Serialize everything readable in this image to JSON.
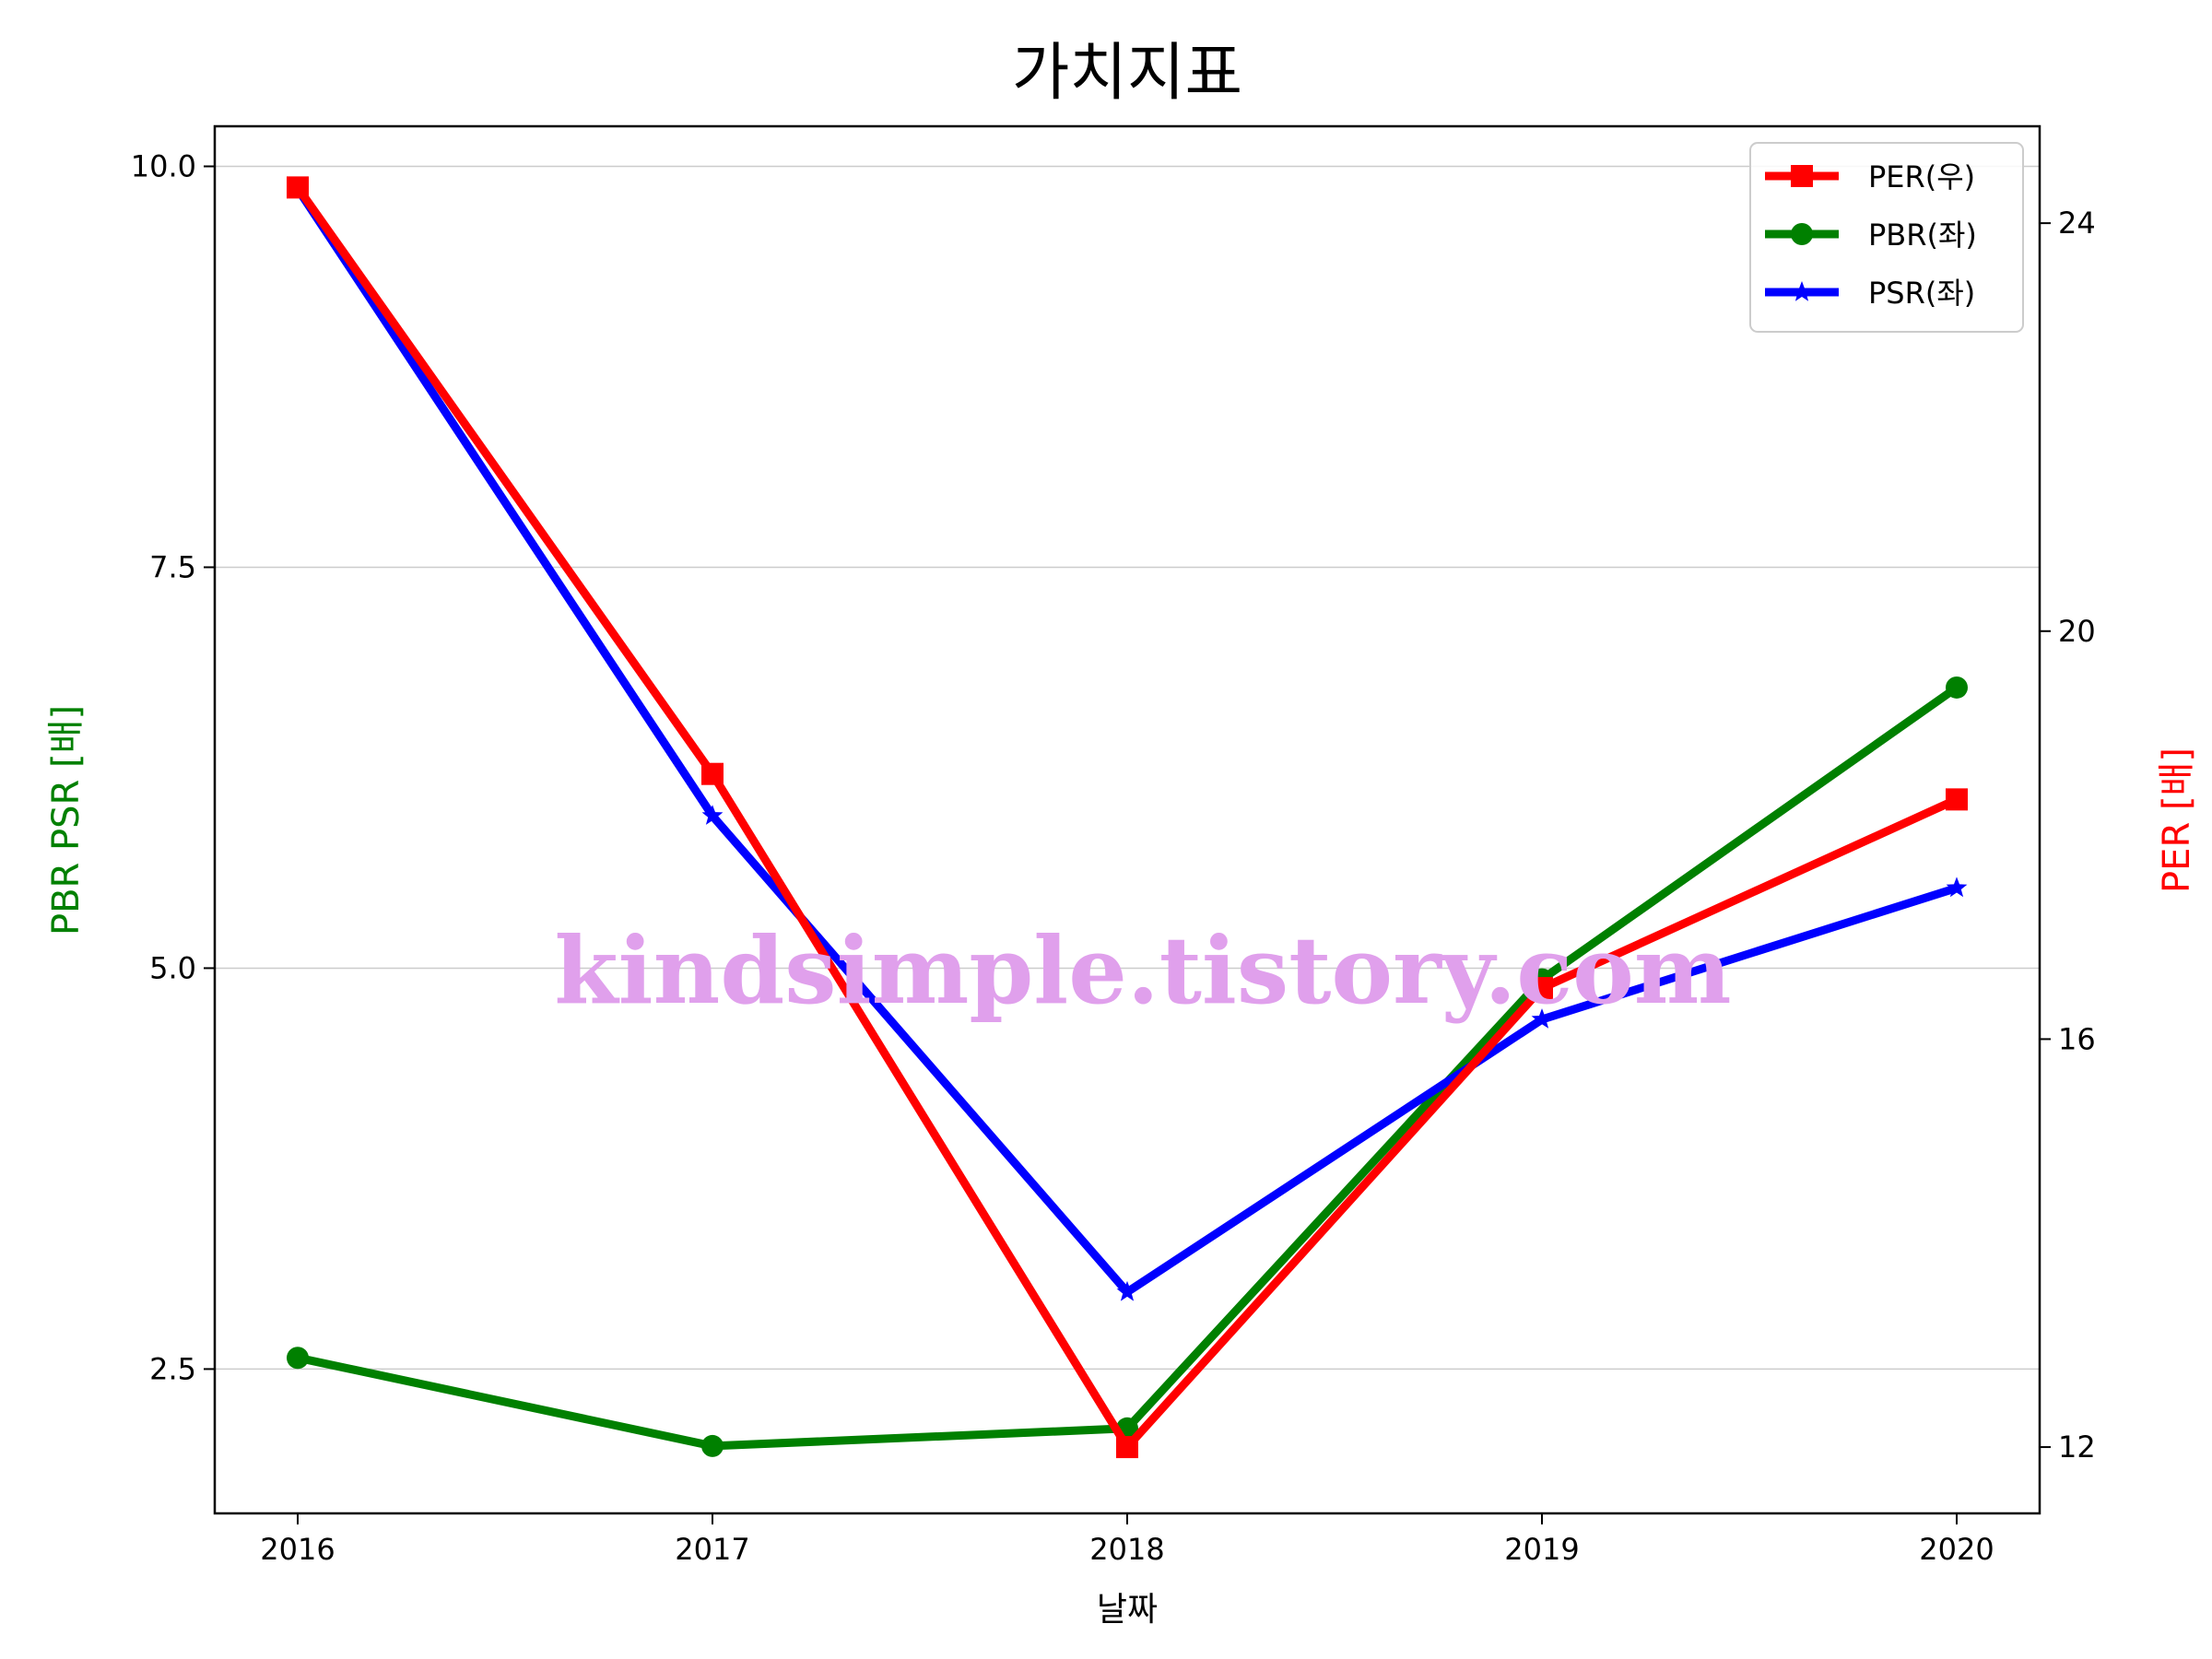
{
  "chart_data": {
    "type": "line",
    "title": "가치지표",
    "xlabel": "날짜",
    "ylabel_left": "PBR PSR [배]",
    "ylabel_right": "PER [배]",
    "categories": [
      "2016",
      "2017",
      "2018",
      "2019",
      "2020"
    ],
    "left_axis": {
      "ylim": [
        1.6,
        10.25
      ],
      "ticks": [
        "2.5",
        "5.0",
        "7.5",
        "10.0"
      ],
      "tick_values": [
        2.5,
        5.0,
        7.5,
        10.0
      ],
      "color": "#008000"
    },
    "right_axis": {
      "ylim": [
        11.35,
        24.95
      ],
      "ticks": [
        "12",
        "16",
        "20",
        "24"
      ],
      "tick_values": [
        12,
        16,
        20,
        24
      ],
      "color": "#ff0000"
    },
    "series": [
      {
        "name": "PER(우)",
        "axis": "right",
        "color": "#ff0000",
        "marker": "square",
        "values": [
          24.35,
          18.6,
          12.0,
          16.5,
          18.35
        ]
      },
      {
        "name": "PBR(좌)",
        "axis": "left",
        "color": "#008000",
        "marker": "circle",
        "values": [
          2.57,
          2.02,
          2.13,
          4.93,
          6.75
        ]
      },
      {
        "name": "PSR(좌)",
        "axis": "left",
        "color": "#0000ff",
        "marker": "star",
        "values": [
          9.86,
          5.95,
          2.98,
          4.68,
          5.5
        ]
      }
    ],
    "grid": "horizontal",
    "legend": "top-right",
    "watermark": "kindsimple.tistory.com"
  }
}
